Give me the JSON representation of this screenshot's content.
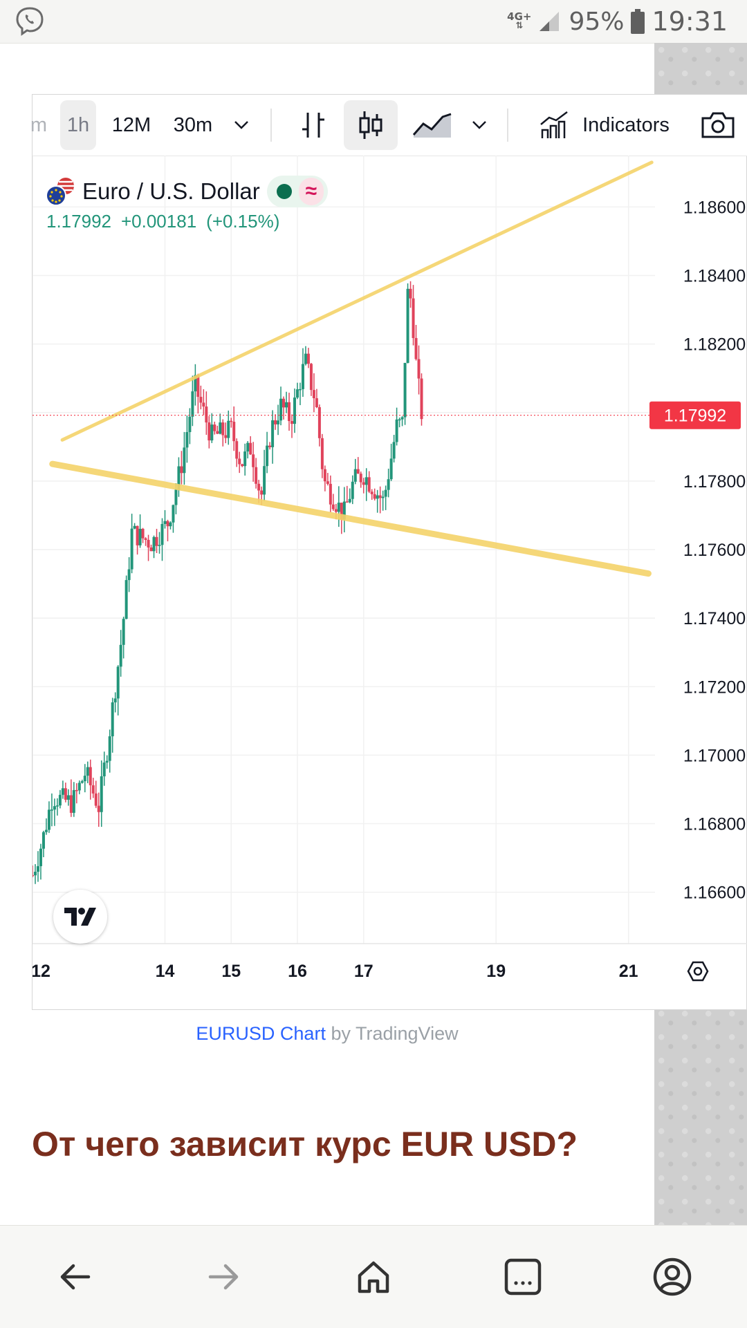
{
  "status_bar": {
    "network": "4G+",
    "battery": "95%",
    "time": "19:31"
  },
  "toolbar": {
    "partial_left": "m",
    "intervals": [
      "1h",
      "12M",
      "30m"
    ],
    "indicators_label": "Indicators",
    "icons": [
      "chevron-down-icon",
      "bar-chart-icon",
      "candlestick-icon",
      "area-chart-icon",
      "chevron-down-icon",
      "indicators-icon",
      "camera-icon"
    ]
  },
  "legend": {
    "symbol_name": "Euro / U.S. Dollar",
    "wave_glyph": "≈",
    "last_price": "1.17992",
    "change": "+0.00181",
    "change_pct": "(+0.15%)"
  },
  "chart_data": {
    "type": "candlestick",
    "title": "",
    "symbol": "Euro / U.S. Dollar",
    "y_range": [
      1.1645,
      1.1875
    ],
    "y_ticks": [
      "1.18600",
      "1.18400",
      "1.18200",
      "1.18000",
      "1.17800",
      "1.17600",
      "1.17400",
      "1.17200",
      "1.17000",
      "1.16800",
      "1.16600"
    ],
    "y_tick_values": [
      1.186,
      1.184,
      1.182,
      1.18,
      1.178,
      1.176,
      1.174,
      1.172,
      1.17,
      1.168,
      1.166
    ],
    "x_ticks": [
      "12",
      "14",
      "15",
      "16",
      "17",
      "19",
      "21"
    ],
    "x_tick_days": [
      12,
      14,
      15,
      16,
      17,
      19,
      21
    ],
    "x_range_days": [
      12,
      21.4
    ],
    "current_price_label": "1.17992",
    "current_price": 1.17992,
    "trendlines": [
      {
        "name": "upper",
        "from": {
          "day": 12.45,
          "price": 1.1792
        },
        "to": {
          "day": 21.35,
          "price": 1.1873
        }
      },
      {
        "name": "lower",
        "from": {
          "day": 12.3,
          "price": 1.1785
        },
        "to": {
          "day": 21.3,
          "price": 1.1753
        }
      }
    ],
    "waypoints": [
      {
        "day": 12.0,
        "price": 1.1665
      },
      {
        "day": 12.15,
        "price": 1.1675
      },
      {
        "day": 12.3,
        "price": 1.1688
      },
      {
        "day": 12.6,
        "price": 1.1686
      },
      {
        "day": 12.8,
        "price": 1.1695
      },
      {
        "day": 13.0,
        "price": 1.1685
      },
      {
        "day": 13.15,
        "price": 1.1705
      },
      {
        "day": 13.35,
        "price": 1.1735
      },
      {
        "day": 13.5,
        "price": 1.1765
      },
      {
        "day": 13.8,
        "price": 1.1762
      },
      {
        "day": 14.05,
        "price": 1.1768
      },
      {
        "day": 14.25,
        "price": 1.1785
      },
      {
        "day": 14.45,
        "price": 1.1808
      },
      {
        "day": 14.7,
        "price": 1.1793
      },
      {
        "day": 15.0,
        "price": 1.1795
      },
      {
        "day": 15.15,
        "price": 1.1785
      },
      {
        "day": 15.3,
        "price": 1.179
      },
      {
        "day": 15.45,
        "price": 1.1775
      },
      {
        "day": 15.6,
        "price": 1.1795
      },
      {
        "day": 15.75,
        "price": 1.1802
      },
      {
        "day": 15.9,
        "price": 1.1798
      },
      {
        "day": 16.05,
        "price": 1.181
      },
      {
        "day": 16.12,
        "price": 1.1815
      },
      {
        "day": 16.28,
        "price": 1.1803
      },
      {
        "day": 16.4,
        "price": 1.178
      },
      {
        "day": 16.55,
        "price": 1.1775
      },
      {
        "day": 16.7,
        "price": 1.177
      },
      {
        "day": 16.85,
        "price": 1.178
      },
      {
        "day": 17.0,
        "price": 1.1782
      },
      {
        "day": 17.15,
        "price": 1.1778
      },
      {
        "day": 17.3,
        "price": 1.1774
      },
      {
        "day": 17.4,
        "price": 1.1785
      },
      {
        "day": 17.5,
        "price": 1.1796
      },
      {
        "day": 17.6,
        "price": 1.1797
      },
      {
        "day": 17.65,
        "price": 1.1835
      },
      {
        "day": 17.72,
        "price": 1.1833
      },
      {
        "day": 17.8,
        "price": 1.1812
      },
      {
        "day": 17.88,
        "price": 1.17992
      }
    ]
  },
  "credit": {
    "link_text": "EURUSD Chart",
    "by_text": "by TradingView"
  },
  "headline": "От чего зависит курс EUR USD?",
  "colors": {
    "up": "#22957a",
    "down": "#e0435b",
    "trendline": "#f5d36a",
    "price_label_bg": "#f23645",
    "headline": "#7a2e1d"
  }
}
